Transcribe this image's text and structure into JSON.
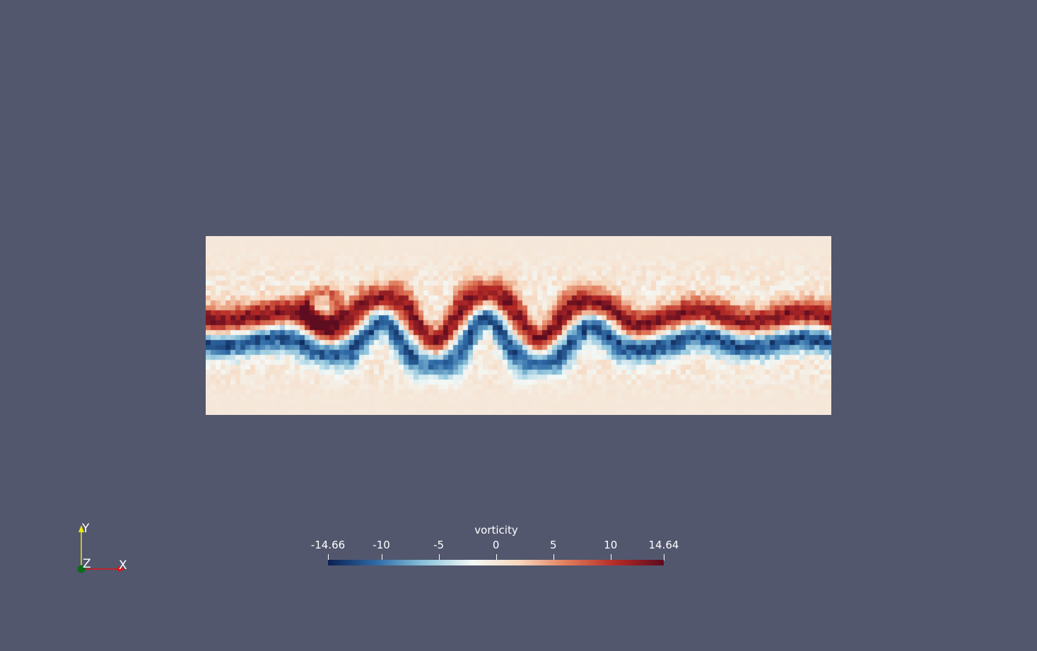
{
  "colorbar": {
    "title": "vorticity",
    "min": -14.66,
    "max": 14.64,
    "ticks": [
      {
        "value": -14.66,
        "label": "-14.66"
      },
      {
        "value": -10,
        "label": "-10"
      },
      {
        "value": -5,
        "label": "-5"
      },
      {
        "value": 0,
        "label": "0"
      },
      {
        "value": 5,
        "label": "5"
      },
      {
        "value": 10,
        "label": "10"
      },
      {
        "value": 14.64,
        "label": "14.64"
      }
    ],
    "colormap": [
      "#0b2151",
      "#2f6aa6",
      "#8cc3dc",
      "#f4f9f7",
      "#f7d7bd",
      "#e07b5a",
      "#b52a26",
      "#5e0c20"
    ]
  },
  "orientation_axes": {
    "x_label": "X",
    "y_label": "Y",
    "z_label": "Z",
    "x_color": "#e01414",
    "y_color": "#e8e812",
    "z_color": "#0c6b17"
  },
  "scene": {
    "background": "#52576e",
    "field_name": "vorticity"
  }
}
